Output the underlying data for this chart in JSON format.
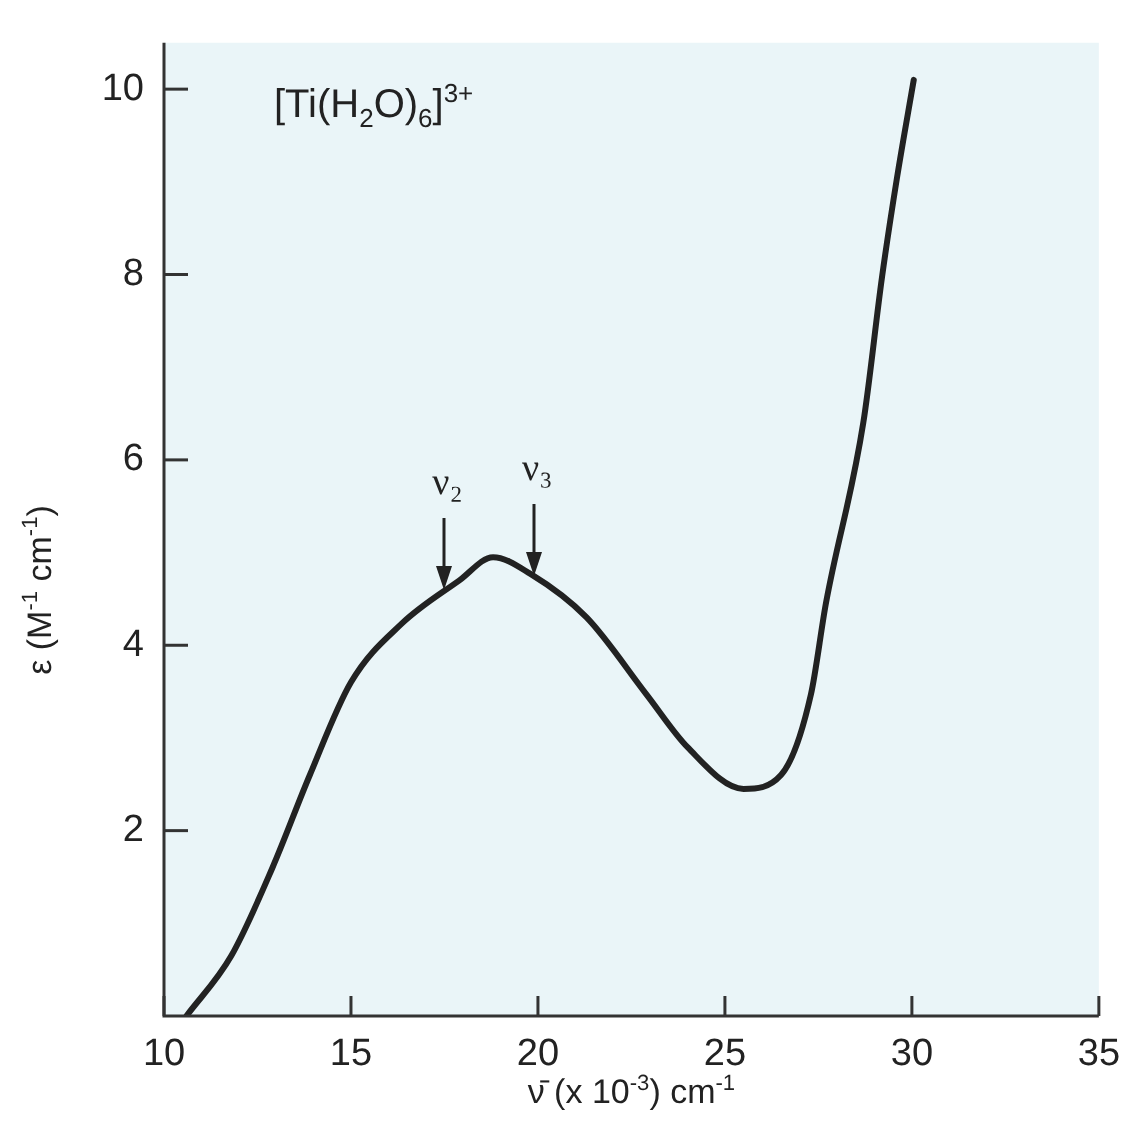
{
  "chart_data": {
    "type": "line",
    "title": "[Ti(H$_{2}$O)$_{6}$]$^{3+}$",
    "xlabel": "ν̄ (x 10$^{-3}$) cm$^{-1}$",
    "ylabel": "ε (M$^{-1}$ cm$^{-1}$)",
    "x": [
      10.6,
      11.8,
      12.9,
      13.9,
      15.0,
      16.35,
      17.9,
      18.8,
      19.8,
      21.3,
      22.9,
      24.0,
      25.5,
      26.5,
      27.3,
      27.7,
      28.7,
      29.2,
      29.6,
      30.05
    ],
    "series": [
      {
        "color": "#222222",
        "values": [
          0,
          0.65,
          1.6,
          2.6,
          3.6,
          4.23,
          4.7,
          4.95,
          4.77,
          4.3,
          3.47,
          2.9,
          2.45,
          2.6,
          3.47,
          4.45,
          6.4,
          7.97,
          9.04,
          10.1
        ]
      }
    ],
    "xlim": [
      10,
      35
    ],
    "ylim": [
      0,
      10.5
    ],
    "xticks": [
      10,
      15,
      20,
      25,
      30,
      35
    ],
    "yticks": [
      2,
      4,
      6,
      8,
      10
    ],
    "marker": "none",
    "line_style": "solid",
    "annotations": [
      {
        "text": "ν₂",
        "x": 17.5,
        "y": 4.6
      },
      {
        "text": "ν₃",
        "x": 19.9,
        "y": 4.75
      }
    ]
  }
}
